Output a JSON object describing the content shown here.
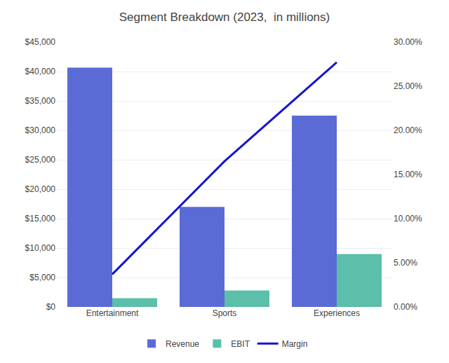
{
  "chart_data": {
    "type": "bar",
    "title": "Segment Breakdown (2023,  in millions)",
    "categories": [
      "Entertainment",
      "Sports",
      "Experiences"
    ],
    "series": [
      {
        "name": "Revenue",
        "color": "#5B6BD5",
        "values": [
          40650,
          17000,
          32500
        ]
      },
      {
        "name": "EBIT",
        "color": "#5BBFAA",
        "values": [
          1500,
          2800,
          9000
        ]
      },
      {
        "name": "Margin",
        "type": "line",
        "axis": "y2",
        "color": "#1515CC",
        "values": [
          0.037,
          0.165,
          0.277
        ]
      }
    ],
    "ylim": [
      0,
      45000
    ],
    "yticks": [
      {
        "value": 0,
        "label": "$0"
      },
      {
        "value": 5000,
        "label": "$5,000"
      },
      {
        "value": 10000,
        "label": "$10,000"
      },
      {
        "value": 15000,
        "label": "$15,000"
      },
      {
        "value": 20000,
        "label": "$20,000"
      },
      {
        "value": 25000,
        "label": "$25,000"
      },
      {
        "value": 30000,
        "label": "$30,000"
      },
      {
        "value": 35000,
        "label": "$35,000"
      },
      {
        "value": 40000,
        "label": "$40,000"
      },
      {
        "value": 45000,
        "label": "$45,000"
      }
    ],
    "y2lim": [
      0,
      0.3
    ],
    "y2ticks": [
      {
        "value": 0.0,
        "label": "0.00%"
      },
      {
        "value": 0.05,
        "label": "5.00%"
      },
      {
        "value": 0.1,
        "label": "10.00%"
      },
      {
        "value": 0.15,
        "label": "15.00%"
      },
      {
        "value": 0.2,
        "label": "20.00%"
      },
      {
        "value": 0.25,
        "label": "25.00%"
      },
      {
        "value": 0.3,
        "label": "30.00%"
      }
    ],
    "grid": true,
    "legend": "bottom"
  }
}
